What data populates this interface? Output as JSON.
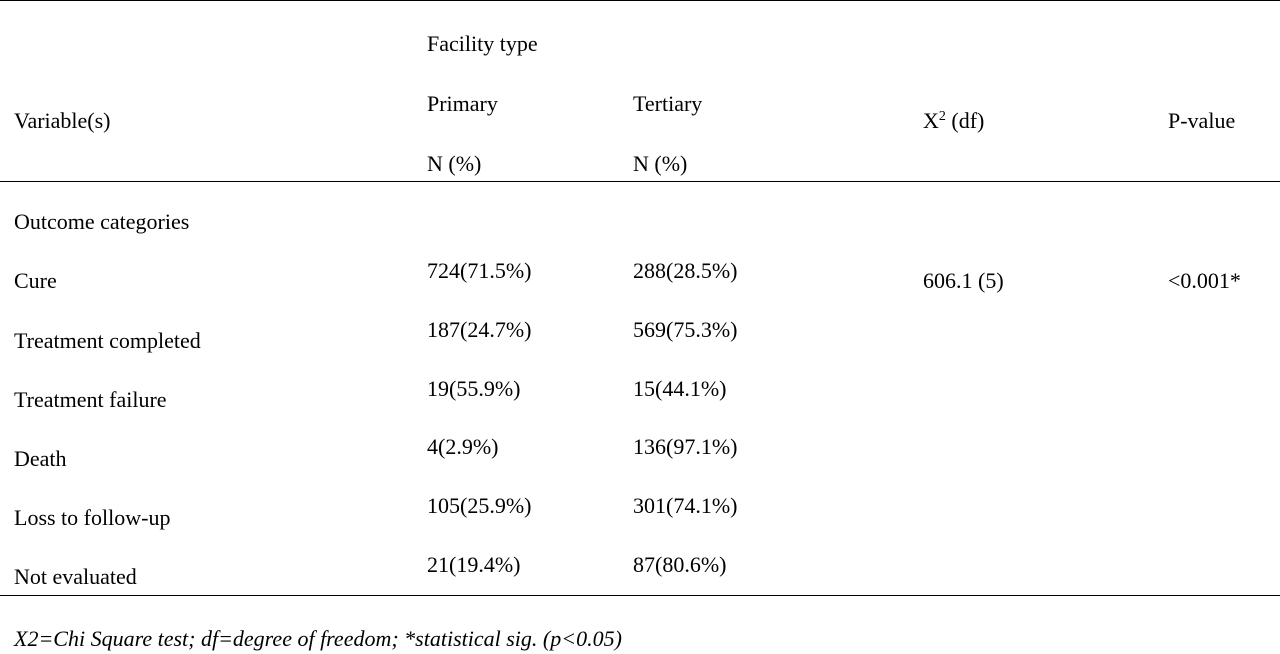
{
  "header": {
    "variable": "Variable(s)",
    "facility_type": "Facility type",
    "primary": "Primary",
    "tertiary": "Tertiary",
    "primary_unit": "N (%)",
    "tertiary_unit": "N (%)",
    "chi_square_base": "X",
    "chi_square_sup": "2",
    "chi_square_rest": " (df)",
    "pvalue": "P-value"
  },
  "section_label": "Outcome categories",
  "rows": [
    {
      "label": "Cure",
      "primary": "724(71.5%)",
      "tertiary": "288(28.5%)"
    },
    {
      "label": "Treatment completed",
      "primary": "187(24.7%)",
      "tertiary": "569(75.3%)"
    },
    {
      "label": "Treatment failure",
      "primary": "19(55.9%)",
      "tertiary": "15(44.1%)"
    },
    {
      "label": "Death",
      "primary": "4(2.9%)",
      "tertiary": "136(97.1%)"
    },
    {
      "label": "Loss to follow-up",
      "primary": "105(25.9%)",
      "tertiary": "301(74.1%)"
    },
    {
      "label": "Not evaluated",
      "primary": "21(19.4%)",
      "tertiary": "87(80.6%)"
    }
  ],
  "stats": {
    "chi_square": "606.1 (5)",
    "pvalue": "<0.001*"
  },
  "footnote": "X2=Chi Square test; df=degree of freedom; *statistical sig. (p<0.05)"
}
